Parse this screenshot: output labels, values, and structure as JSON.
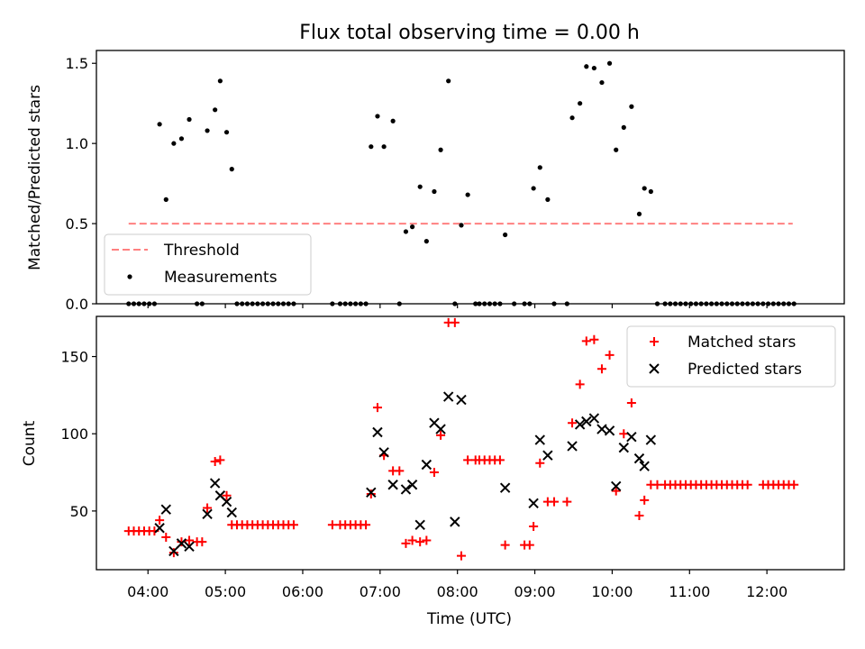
{
  "figure_title": "Flux total observing time = 0.00 h",
  "chart_data": [
    {
      "type": "scatter",
      "title": "Flux total observing time = 0.00 h",
      "xlabel": "",
      "ylabel": "Matched/Predicted stars",
      "xlim": [
        "03:20",
        "13:00"
      ],
      "ylim": [
        0,
        1.58
      ],
      "yticks": [
        0.0,
        0.5,
        1.0,
        1.5
      ],
      "ytick_labels": [
        "0.0",
        "0.5",
        "1.0",
        "1.5"
      ],
      "grid": false,
      "legend_position": "lower-left",
      "threshold": {
        "name": "Threshold",
        "value": 0.5,
        "x_range": [
          "03:45",
          "12:20"
        ],
        "color": "#ff8080",
        "style": "dashed"
      },
      "series": [
        {
          "name": "Measurements",
          "color": "#000000",
          "marker": "dot",
          "points": [
            [
              "03:45",
              0
            ],
            [
              "03:49",
              0
            ],
            [
              "03:53",
              0
            ],
            [
              "03:57",
              0
            ],
            [
              "04:01",
              0
            ],
            [
              "04:05",
              0.0
            ],
            [
              "04:09",
              1.12
            ],
            [
              "04:14",
              0.65
            ],
            [
              "04:20",
              1.0
            ],
            [
              "04:26",
              1.03
            ],
            [
              "04:32",
              1.15
            ],
            [
              "04:38",
              0.0
            ],
            [
              "04:42",
              0.0
            ],
            [
              "04:46",
              1.08
            ],
            [
              "04:52",
              1.21
            ],
            [
              "04:56",
              1.39
            ],
            [
              "05:01",
              1.07
            ],
            [
              "05:05",
              0.84
            ],
            [
              "05:09",
              0
            ],
            [
              "05:13",
              0
            ],
            [
              "05:17",
              0
            ],
            [
              "05:21",
              0
            ],
            [
              "05:25",
              0
            ],
            [
              "05:29",
              0
            ],
            [
              "05:33",
              0
            ],
            [
              "05:37",
              0
            ],
            [
              "05:41",
              0
            ],
            [
              "05:45",
              0
            ],
            [
              "05:49",
              0
            ],
            [
              "05:53",
              0
            ],
            [
              "06:23",
              0
            ],
            [
              "06:29",
              0
            ],
            [
              "06:33",
              0
            ],
            [
              "06:37",
              0
            ],
            [
              "06:41",
              0
            ],
            [
              "06:45",
              0
            ],
            [
              "06:49",
              0
            ],
            [
              "06:53",
              0.98
            ],
            [
              "06:58",
              1.17
            ],
            [
              "07:03",
              0.98
            ],
            [
              "07:10",
              1.14
            ],
            [
              "07:15",
              0.0
            ],
            [
              "07:20",
              0.45
            ],
            [
              "07:25",
              0.48
            ],
            [
              "07:31",
              0.73
            ],
            [
              "07:36",
              0.39
            ],
            [
              "07:42",
              0.7
            ],
            [
              "07:47",
              0.96
            ],
            [
              "07:53",
              1.39
            ],
            [
              "07:58",
              0.0
            ],
            [
              "08:03",
              0.49
            ],
            [
              "08:08",
              0.68
            ],
            [
              "08:14",
              0
            ],
            [
              "08:17",
              0
            ],
            [
              "08:21",
              0
            ],
            [
              "08:25",
              0
            ],
            [
              "08:29",
              0
            ],
            [
              "08:33",
              0
            ],
            [
              "08:37",
              0.43
            ],
            [
              "08:44",
              0.0
            ],
            [
              "08:52",
              0
            ],
            [
              "08:56",
              0
            ],
            [
              "08:59",
              0.72
            ],
            [
              "09:04",
              0.85
            ],
            [
              "09:10",
              0.65
            ],
            [
              "09:15",
              0.0
            ],
            [
              "09:25",
              0.0
            ],
            [
              "09:29",
              1.16
            ],
            [
              "09:35",
              1.25
            ],
            [
              "09:40",
              1.48
            ],
            [
              "09:46",
              1.47
            ],
            [
              "09:52",
              1.38
            ],
            [
              "09:58",
              1.5
            ],
            [
              "10:03",
              0.96
            ],
            [
              "10:09",
              1.1
            ],
            [
              "10:15",
              1.23
            ],
            [
              "10:21",
              0.56
            ],
            [
              "10:25",
              0.72
            ],
            [
              "10:30",
              0.7
            ],
            [
              "10:35",
              0
            ],
            [
              "10:41",
              0
            ],
            [
              "10:45",
              0
            ],
            [
              "10:49",
              0
            ],
            [
              "10:53",
              0
            ],
            [
              "10:57",
              0
            ],
            [
              "11:01",
              0
            ],
            [
              "11:05",
              0
            ],
            [
              "11:09",
              0
            ],
            [
              "11:13",
              0
            ],
            [
              "11:17",
              0
            ],
            [
              "11:21",
              0
            ],
            [
              "11:25",
              0
            ],
            [
              "11:29",
              0
            ],
            [
              "11:33",
              0
            ],
            [
              "11:37",
              0
            ],
            [
              "11:41",
              0
            ],
            [
              "11:45",
              0
            ],
            [
              "11:49",
              0
            ],
            [
              "11:53",
              0
            ],
            [
              "11:57",
              0
            ],
            [
              "12:01",
              0
            ],
            [
              "12:05",
              0
            ],
            [
              "12:09",
              0
            ],
            [
              "12:13",
              0
            ],
            [
              "12:17",
              0
            ],
            [
              "12:21",
              0
            ]
          ]
        }
      ],
      "legend": [
        "Threshold",
        "Measurements"
      ]
    },
    {
      "type": "scatter",
      "title": "",
      "xlabel": "Time (UTC)",
      "ylabel": "Count",
      "xlim": [
        "03:20",
        "13:00"
      ],
      "ylim": [
        12,
        176
      ],
      "xticks": [
        "04:00",
        "05:00",
        "06:00",
        "07:00",
        "08:00",
        "09:00",
        "10:00",
        "11:00",
        "12:00"
      ],
      "yticks": [
        50,
        100,
        150
      ],
      "ytick_labels": [
        "50",
        "100",
        "150"
      ],
      "grid": false,
      "legend_position": "upper-right",
      "series": [
        {
          "name": "Matched stars",
          "color": "#ff0000",
          "marker": "plus",
          "points": [
            [
              "03:45",
              37
            ],
            [
              "03:49",
              37
            ],
            [
              "03:53",
              37
            ],
            [
              "03:57",
              37
            ],
            [
              "04:01",
              37
            ],
            [
              "04:05",
              37
            ],
            [
              "04:09",
              44
            ],
            [
              "04:14",
              33
            ],
            [
              "04:20",
              23
            ],
            [
              "04:26",
              30
            ],
            [
              "04:32",
              31
            ],
            [
              "04:38",
              30
            ],
            [
              "04:42",
              30
            ],
            [
              "04:46",
              52
            ],
            [
              "04:52",
              82
            ],
            [
              "04:56",
              83
            ],
            [
              "05:01",
              60
            ],
            [
              "05:05",
              41
            ],
            [
              "05:09",
              41
            ],
            [
              "05:13",
              41
            ],
            [
              "05:17",
              41
            ],
            [
              "05:21",
              41
            ],
            [
              "05:25",
              41
            ],
            [
              "05:29",
              41
            ],
            [
              "05:33",
              41
            ],
            [
              "05:37",
              41
            ],
            [
              "05:41",
              41
            ],
            [
              "05:45",
              41
            ],
            [
              "05:49",
              41
            ],
            [
              "05:53",
              41
            ],
            [
              "06:23",
              41
            ],
            [
              "06:29",
              41
            ],
            [
              "06:33",
              41
            ],
            [
              "06:37",
              41
            ],
            [
              "06:41",
              41
            ],
            [
              "06:45",
              41
            ],
            [
              "06:49",
              41
            ],
            [
              "06:53",
              61
            ],
            [
              "06:58",
              117
            ],
            [
              "07:03",
              86
            ],
            [
              "07:10",
              76
            ],
            [
              "07:15",
              76
            ],
            [
              "07:20",
              29
            ],
            [
              "07:25",
              31
            ],
            [
              "07:31",
              30
            ],
            [
              "07:36",
              31
            ],
            [
              "07:42",
              75
            ],
            [
              "07:47",
              99
            ],
            [
              "07:53",
              172
            ],
            [
              "07:58",
              172
            ],
            [
              "08:03",
              21
            ],
            [
              "08:08",
              83
            ],
            [
              "08:14",
              83
            ],
            [
              "08:17",
              83
            ],
            [
              "08:21",
              83
            ],
            [
              "08:25",
              83
            ],
            [
              "08:29",
              83
            ],
            [
              "08:33",
              83
            ],
            [
              "08:37",
              28
            ],
            [
              "08:52",
              28
            ],
            [
              "08:56",
              28
            ],
            [
              "08:59",
              40
            ],
            [
              "09:04",
              81
            ],
            [
              "09:10",
              56
            ],
            [
              "09:15",
              56
            ],
            [
              "09:25",
              56
            ],
            [
              "09:29",
              107
            ],
            [
              "09:35",
              132
            ],
            [
              "09:40",
              160
            ],
            [
              "09:46",
              161
            ],
            [
              "09:52",
              142
            ],
            [
              "09:58",
              151
            ],
            [
              "10:03",
              63
            ],
            [
              "10:09",
              100
            ],
            [
              "10:15",
              120
            ],
            [
              "10:21",
              47
            ],
            [
              "10:25",
              57
            ],
            [
              "10:30",
              67
            ],
            [
              "10:35",
              67
            ],
            [
              "10:41",
              67
            ],
            [
              "10:45",
              67
            ],
            [
              "10:49",
              67
            ],
            [
              "10:53",
              67
            ],
            [
              "10:57",
              67
            ],
            [
              "11:01",
              67
            ],
            [
              "11:05",
              67
            ],
            [
              "11:09",
              67
            ],
            [
              "11:13",
              67
            ],
            [
              "11:17",
              67
            ],
            [
              "11:21",
              67
            ],
            [
              "11:25",
              67
            ],
            [
              "11:29",
              67
            ],
            [
              "11:33",
              67
            ],
            [
              "11:37",
              67
            ],
            [
              "11:41",
              67
            ],
            [
              "11:45",
              67
            ],
            [
              "11:57",
              67
            ],
            [
              "12:01",
              67
            ],
            [
              "12:05",
              67
            ],
            [
              "12:09",
              67
            ],
            [
              "12:13",
              67
            ],
            [
              "12:17",
              67
            ],
            [
              "12:21",
              67
            ]
          ]
        },
        {
          "name": "Predicted stars",
          "color": "#000000",
          "marker": "x",
          "points": [
            [
              "04:09",
              39
            ],
            [
              "04:14",
              51
            ],
            [
              "04:20",
              24
            ],
            [
              "04:26",
              29
            ],
            [
              "04:32",
              27
            ],
            [
              "04:46",
              48
            ],
            [
              "04:52",
              68
            ],
            [
              "04:56",
              60
            ],
            [
              "05:01",
              56
            ],
            [
              "05:05",
              49
            ],
            [
              "06:53",
              62
            ],
            [
              "06:58",
              101
            ],
            [
              "07:03",
              88
            ],
            [
              "07:10",
              67
            ],
            [
              "07:20",
              64
            ],
            [
              "07:25",
              67
            ],
            [
              "07:31",
              41
            ],
            [
              "07:36",
              80
            ],
            [
              "07:42",
              107
            ],
            [
              "07:47",
              103
            ],
            [
              "07:53",
              124
            ],
            [
              "07:58",
              43
            ],
            [
              "08:03",
              122
            ],
            [
              "08:37",
              65
            ],
            [
              "08:59",
              55
            ],
            [
              "09:04",
              96
            ],
            [
              "09:10",
              86
            ],
            [
              "09:29",
              92
            ],
            [
              "09:35",
              106
            ],
            [
              "09:40",
              108
            ],
            [
              "09:46",
              110
            ],
            [
              "09:52",
              103
            ],
            [
              "09:58",
              102
            ],
            [
              "10:03",
              66
            ],
            [
              "10:09",
              91
            ],
            [
              "10:15",
              98
            ],
            [
              "10:21",
              84
            ],
            [
              "10:25",
              79
            ],
            [
              "10:30",
              96
            ]
          ]
        }
      ],
      "legend": [
        "Matched stars",
        "Predicted stars"
      ]
    }
  ]
}
